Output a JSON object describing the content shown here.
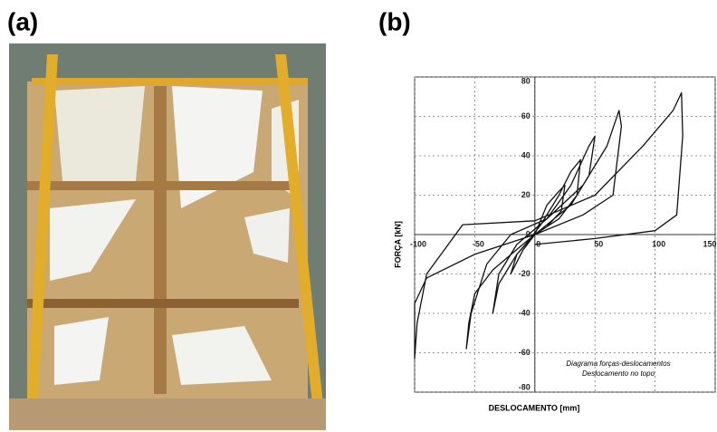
{
  "panels": [
    {
      "label": "(a)"
    },
    {
      "label": "(b)"
    }
  ],
  "chart_data": {
    "type": "line",
    "xlabel": "DESLOCAMENTO [mm]",
    "ylabel": "FORÇA [kN]",
    "annotations": [
      "Diagrama forças-deslocamentos",
      "Deslocamento no topo"
    ],
    "x": [
      0,
      10,
      20,
      25,
      22,
      10,
      0,
      -10,
      -20,
      -15,
      -5,
      5,
      20,
      30,
      38,
      35,
      20,
      0,
      -15,
      -30,
      -35,
      -30,
      -15,
      10,
      30,
      45,
      50,
      45,
      30,
      10,
      -10,
      -35,
      -50,
      -55,
      -57,
      -53,
      -40,
      -20,
      10,
      40,
      60,
      70,
      72,
      65,
      40,
      0,
      -50,
      -90,
      -100,
      -100,
      -98,
      -90,
      -60,
      0,
      50,
      90,
      115,
      122,
      123,
      118,
      100,
      50,
      0
    ],
    "series": [
      {
        "name": "Diagrama forças-deslocamentos",
        "color": "#111111",
        "values": [
          0,
          15,
          22,
          25,
          12,
          4,
          0,
          -8,
          -20,
          -10,
          -3,
          5,
          20,
          32,
          38,
          20,
          8,
          0,
          -10,
          -25,
          -40,
          -20,
          -5,
          8,
          25,
          45,
          50,
          30,
          15,
          5,
          -5,
          -18,
          -30,
          -45,
          -58,
          -40,
          -15,
          0,
          8,
          25,
          45,
          63,
          55,
          20,
          10,
          0,
          -10,
          -22,
          -35,
          -63,
          -45,
          -20,
          5,
          7,
          20,
          45,
          63,
          72,
          50,
          10,
          2,
          -2,
          -5
        ]
      }
    ],
    "xlim": [
      -100,
      150
    ],
    "xticks": [
      -100,
      -50,
      0,
      50,
      100,
      150
    ],
    "ylim": [
      -80,
      80
    ],
    "yticks": [
      -80,
      -60,
      -40,
      -20,
      0,
      20,
      40,
      60,
      80
    ],
    "grid": true
  }
}
